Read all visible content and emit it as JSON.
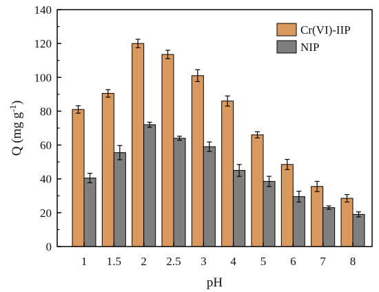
{
  "chart_data": {
    "type": "bar",
    "xlabel": "pH",
    "ylabel_main": "Q (mg g",
    "ylabel_sup": "-1",
    "ylabel_close": ")",
    "ylim": [
      0,
      140
    ],
    "yticks": [
      0,
      20,
      40,
      60,
      80,
      100,
      120,
      140
    ],
    "categories": [
      "1",
      "1.5",
      "2",
      "2.5",
      "3",
      "4",
      "5",
      "6",
      "7",
      "8"
    ],
    "series": [
      {
        "name": "Cr(VI)-IIP",
        "color": "#D9995E",
        "values": [
          81,
          90.5,
          120,
          113.5,
          101,
          86,
          66,
          48.5,
          35.5,
          28.5
        ],
        "errors": [
          2.2,
          2.2,
          2.5,
          2.5,
          3.5,
          3.0,
          1.8,
          3.0,
          3.0,
          2.2
        ]
      },
      {
        "name": "NIP",
        "color": "#7F7F7F",
        "values": [
          40.5,
          55.5,
          72,
          64,
          59,
          45,
          38.5,
          29.5,
          23,
          19
        ],
        "errors": [
          2.8,
          4.2,
          1.5,
          1.2,
          2.8,
          3.5,
          3.0,
          3.2,
          1.0,
          1.5
        ]
      }
    ],
    "grid": false,
    "legend_position": "top-right"
  }
}
